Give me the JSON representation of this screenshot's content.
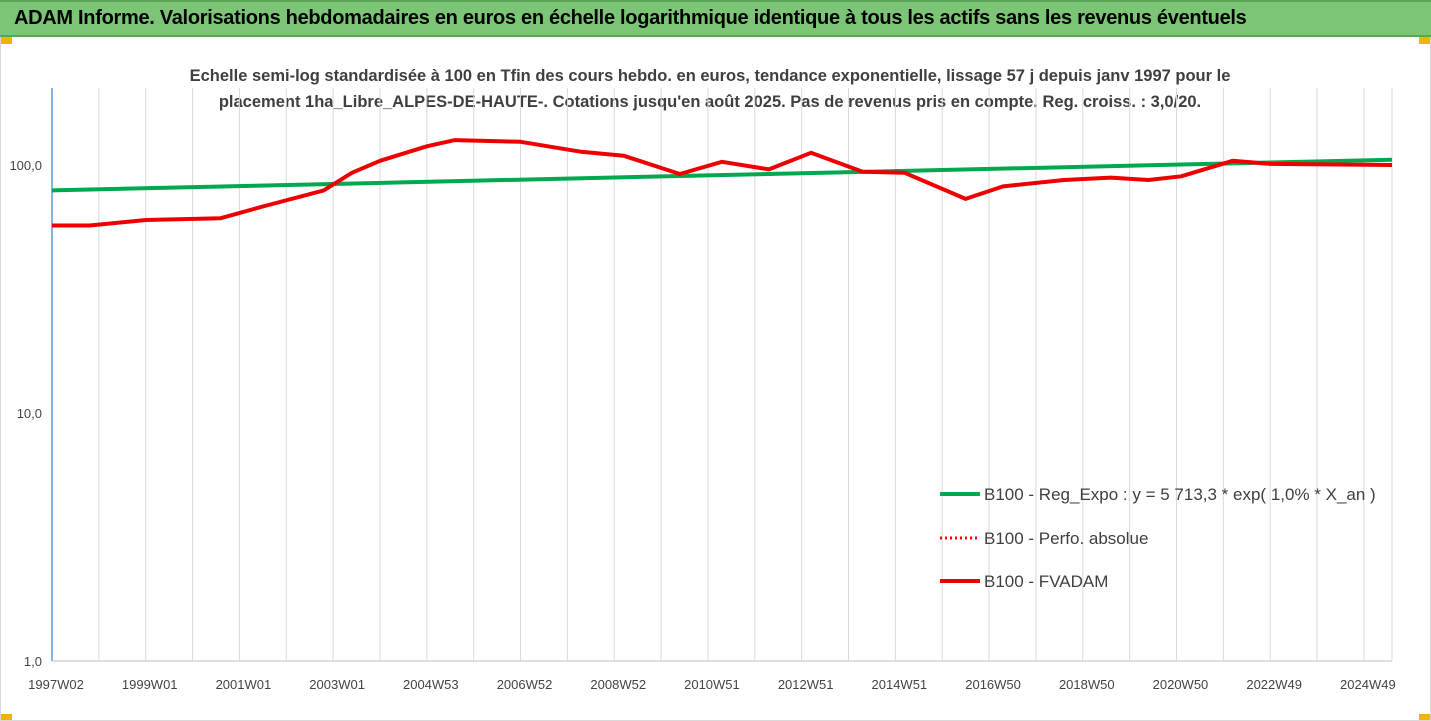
{
  "header": {
    "title": "ADAM Informe. Valorisations hebdomadaires en euros en échelle logarithmique identique à tous les actifs sans les revenus éventuels"
  },
  "colors": {
    "banner": "#7cc576",
    "regression": "#00a84f",
    "perf": "#ff0000",
    "fvadam": "#ee0000",
    "grid": "#d9d9d9",
    "axis": "#5b9bd5"
  },
  "chart_data": {
    "type": "line",
    "title_lines": [
      "Echelle semi-log standardisée à 100 en Tfin des cours hebdo. en euros, tendance exponentielle, lissage 57 j depuis janv 1997 pour le",
      "placement 1ha_Libre_ALPES-DE-HAUTE-. Cotations jusqu'en août 2025. Pas de revenus pris en compte. Reg. croiss. : 3,0/20."
    ],
    "y_scale": "log",
    "ylim": [
      1,
      200
    ],
    "y_ticks": [
      {
        "value": 1,
        "label": "1,0"
      },
      {
        "value": 10,
        "label": "10,0"
      },
      {
        "value": 100,
        "label": "100,0"
      }
    ],
    "x_range": [
      1997.0,
      2025.6
    ],
    "x_ticks": [
      {
        "value": 1997.0,
        "label": "1997W02"
      },
      {
        "value": 1999.0,
        "label": "1999W01"
      },
      {
        "value": 2001.0,
        "label": "2001W01"
      },
      {
        "value": 2003.0,
        "label": "2003W01"
      },
      {
        "value": 2005.0,
        "label": "2004W53"
      },
      {
        "value": 2007.0,
        "label": "2006W52"
      },
      {
        "value": 2009.0,
        "label": "2008W52"
      },
      {
        "value": 2011.0,
        "label": "2010W51"
      },
      {
        "value": 2013.0,
        "label": "2012W51"
      },
      {
        "value": 2015.0,
        "label": "2014W51"
      },
      {
        "value": 2017.0,
        "label": "2016W50"
      },
      {
        "value": 2019.0,
        "label": "2018W50"
      },
      {
        "value": 2021.0,
        "label": "2020W50"
      },
      {
        "value": 2023.0,
        "label": "2022W49"
      },
      {
        "value": 2025.0,
        "label": "2024W49"
      }
    ],
    "grid": "vertical",
    "legend_position": "right",
    "series": [
      {
        "name": "B100 - Reg_Expo : y = 5 713,3 * exp( 1,0% *  X_an )",
        "style": "solid-green",
        "x": [
          1997.0,
          2025.6
        ],
        "y": [
          79.0,
          105.0
        ]
      },
      {
        "name": "B100 - Perfo. absolue",
        "style": "dotted-red",
        "x": [],
        "y": []
      },
      {
        "name": "B100 - FVADAM",
        "style": "solid-red",
        "x": [
          1997.0,
          1997.8,
          1999.0,
          2000.6,
          2001.5,
          2002.8,
          2003.4,
          2004.0,
          2005.0,
          2005.6,
          2007.0,
          2008.3,
          2009.2,
          2010.4,
          2011.3,
          2012.3,
          2013.2,
          2014.3,
          2015.2,
          2016.5,
          2017.3,
          2018.6,
          2019.6,
          2020.4,
          2021.1,
          2022.2,
          2023.0,
          2025.6
        ],
        "y": [
          57,
          57,
          60,
          61,
          68,
          79,
          93,
          104,
          119,
          126,
          124,
          113,
          109,
          92,
          103,
          96,
          112,
          94,
          93,
          73,
          82,
          87,
          89,
          87,
          90,
          104,
          101,
          100
        ]
      }
    ]
  }
}
